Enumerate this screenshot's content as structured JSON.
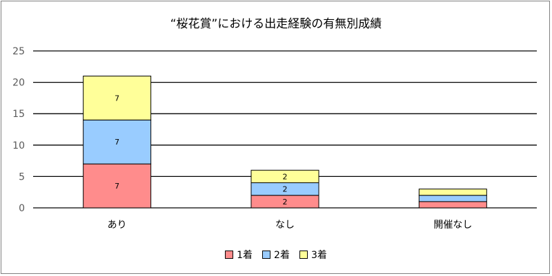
{
  "chart_data": {
    "type": "bar",
    "stacked": true,
    "title": "“桜花賞”における出走経験の有無別成績",
    "categories": [
      "あり",
      "なし",
      "開催なし"
    ],
    "series": [
      {
        "name": "1着",
        "values": [
          7,
          2,
          1
        ],
        "color": "#ff8c8c"
      },
      {
        "name": "2着",
        "values": [
          7,
          2,
          1
        ],
        "color": "#99ccff"
      },
      {
        "name": "3着",
        "values": [
          7,
          2,
          1
        ],
        "color": "#ffff99"
      }
    ],
    "data_labels": [
      [
        "7",
        "7",
        "7"
      ],
      [
        "2",
        "2",
        "2"
      ],
      [
        "",
        "",
        ""
      ]
    ],
    "ylim": [
      0,
      25
    ],
    "yticks": [
      0,
      5,
      10,
      15,
      20,
      25
    ],
    "grid": true,
    "legend": "bottom"
  }
}
